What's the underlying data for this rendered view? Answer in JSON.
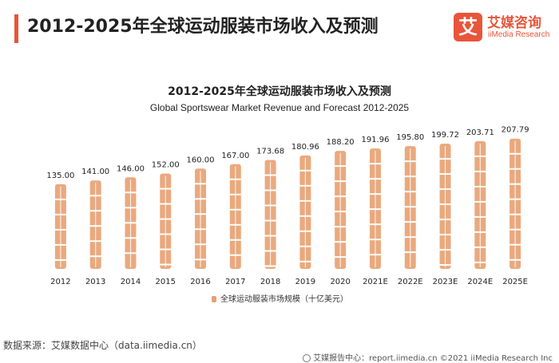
{
  "header": {
    "title": "2012-2025年全球运动服装市场收入及预测",
    "logo_mark": "艾",
    "logo_cn": "艾媒咨询",
    "logo_en": "iiMedia Research"
  },
  "chart_data": {
    "type": "bar",
    "title": "2012-2025年全球运动服装市场收入及预测",
    "subtitle": "Global Sportswear Market Revenue and Forecast 2012-2025",
    "categories": [
      "2012",
      "2013",
      "2014",
      "2015",
      "2016",
      "2017",
      "2018",
      "2019",
      "2020",
      "2021E",
      "2022E",
      "2023E",
      "2024E",
      "2025E"
    ],
    "series": [
      {
        "name": "全球运动服装市场规模（十亿美元）",
        "values": [
          135.0,
          141.0,
          146.0,
          152.0,
          160.0,
          167.0,
          173.68,
          180.96,
          188.2,
          191.96,
          195.8,
          199.72,
          203.71,
          207.79
        ],
        "labels": [
          "135.00",
          "141.00",
          "146.00",
          "152.00",
          "160.00",
          "167.00",
          "173.68",
          "180.96",
          "188.20",
          "191.96",
          "195.80",
          "199.72",
          "203.71",
          "207.79"
        ]
      }
    ],
    "ylim": [
      0,
      210
    ],
    "xlabel": "",
    "ylabel": "",
    "legend_position": "bottom",
    "color": "#e8a070"
  },
  "legend": {
    "label": "全球运动服装市场规模（十亿美元）"
  },
  "footer": {
    "source": "数据来源：艾媒数据中心（data.iimedia.cn）",
    "report": "艾媒报告中心：report.iimedia.cn   ©2021  iiMedia Research  Inc"
  }
}
